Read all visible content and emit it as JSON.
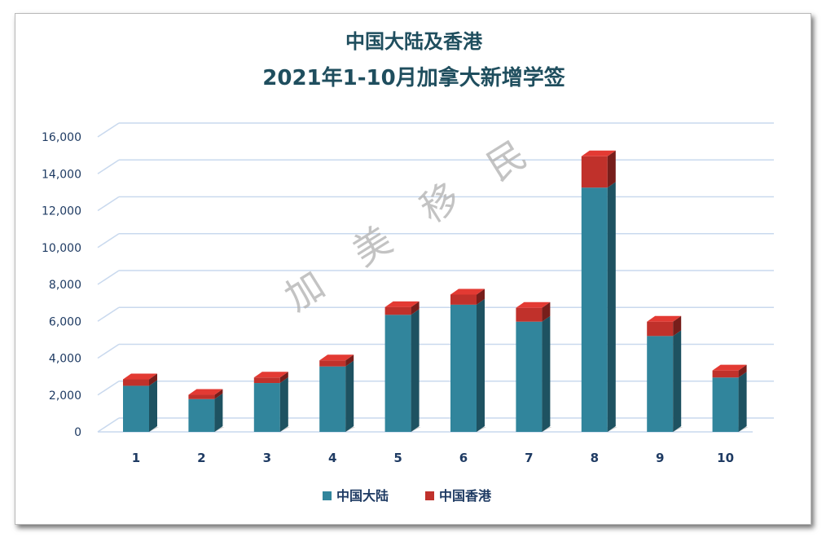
{
  "chart_data": {
    "type": "bar",
    "stacked": true,
    "title_lines": [
      "中国大陆及香港",
      "2021年1-10月加拿大新增学签"
    ],
    "categories": [
      "1",
      "2",
      "3",
      "4",
      "5",
      "6",
      "7",
      "8",
      "9",
      "10"
    ],
    "series": [
      {
        "name": "中国大陆",
        "color": "#31859c",
        "values": [
          2500,
          1780,
          2650,
          3550,
          6350,
          6900,
          5980,
          13250,
          5200,
          2950
        ]
      },
      {
        "name": "中国香港",
        "color": "#c0312b",
        "values": [
          350,
          230,
          300,
          330,
          420,
          550,
          750,
          1700,
          780,
          380
        ]
      }
    ],
    "yticks": [
      "0",
      "2,000",
      "4,000",
      "6,000",
      "8,000",
      "10,000",
      "12,000",
      "14,000",
      "16,000"
    ],
    "ylim": [
      0,
      16000
    ],
    "grid": true,
    "legend_position": "bottom",
    "watermark": [
      "加",
      "美",
      "移",
      "民"
    ]
  }
}
